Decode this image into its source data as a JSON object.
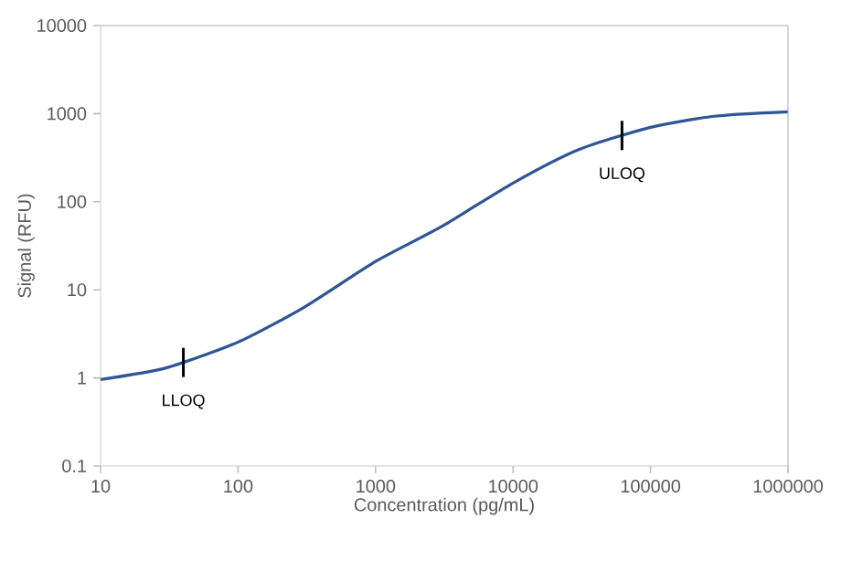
{
  "chart_data": {
    "type": "line",
    "xlabel": "Concentration (pg/mL)",
    "ylabel": "Signal (RFU)",
    "log": "xy",
    "x": [
      10,
      30,
      100,
      300,
      1000,
      3000,
      10000,
      30000,
      100000,
      300000,
      1000000
    ],
    "series": [
      {
        "color": "#2f5597",
        "values": [
          0.96,
          1.3,
          2.55,
          6.3,
          21,
          52,
          163,
          390,
          700,
          940,
          1050
        ]
      }
    ],
    "xlim": [
      10,
      1000000
    ],
    "xticks": [
      10,
      100,
      1000,
      10000,
      100000,
      1000000
    ],
    "ylim": [
      0.1,
      10000
    ],
    "yticks": [
      0.1,
      1,
      10,
      100,
      1000,
      10000
    ],
    "grid": false,
    "legend": false,
    "marker": "none",
    "line_style": "solid",
    "annotations": [
      {
        "text": "LLOQ",
        "x": 40,
        "y": 1.5
      },
      {
        "text": "ULOQ",
        "x": 62000,
        "y": 565
      }
    ]
  }
}
